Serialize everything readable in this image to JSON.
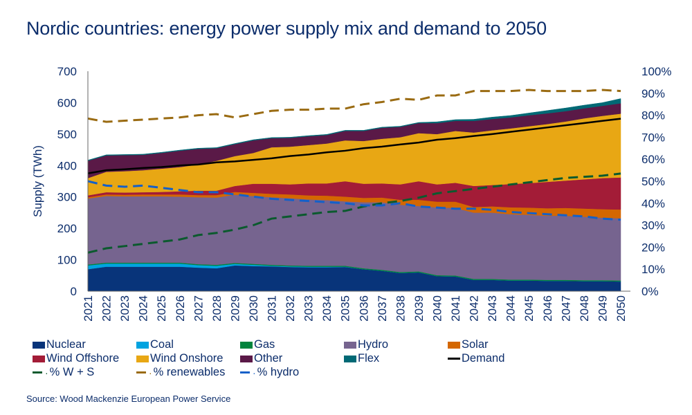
{
  "title": "Nordic countries: energy power supply mix and demand to 2050",
  "source": "Source: Wood Mackenzie European Power Service",
  "chart_data": {
    "type": "area",
    "stacked": true,
    "title": "Nordic countries: energy power supply mix and demand to 2050",
    "ylabel": "Supply (TWh)",
    "ylim": [
      0,
      700
    ],
    "yticks": [
      "0",
      "100",
      "200",
      "300",
      "400",
      "500",
      "600",
      "700"
    ],
    "y2lim": [
      0,
      100
    ],
    "y2ticks": [
      "0%",
      "10%",
      "20%",
      "30%",
      "40%",
      "50%",
      "60%",
      "70%",
      "80%",
      "90%",
      "100%"
    ],
    "grid": false,
    "legend_position": "bottom",
    "categories": [
      "2021",
      "2022",
      "2023",
      "2024",
      "2025",
      "2026",
      "2027",
      "2028",
      "2029",
      "2030",
      "2031",
      "2032",
      "2033",
      "2034",
      "2035",
      "2036",
      "2037",
      "2038",
      "2039",
      "2040",
      "2041",
      "2042",
      "2043",
      "2044",
      "2045",
      "2046",
      "2047",
      "2048",
      "2049",
      "2050"
    ],
    "series": [
      {
        "name": "Nuclear",
        "color": "#08347a",
        "values": [
          70,
          78,
          78,
          78,
          78,
          78,
          75,
          73,
          82,
          80,
          79,
          77,
          76,
          76,
          77,
          70,
          65,
          58,
          60,
          48,
          47,
          36,
          36,
          34,
          34,
          33,
          33,
          32,
          32,
          31
        ]
      },
      {
        "name": "Coal",
        "color": "#00a3e0",
        "values": [
          12,
          10,
          10,
          10,
          10,
          10,
          8,
          8,
          5,
          4,
          2,
          2,
          2,
          2,
          1,
          0,
          0,
          0,
          0,
          0,
          0,
          0,
          0,
          0,
          0,
          0,
          0,
          0,
          0,
          0
        ]
      },
      {
        "name": "Gas",
        "color": "#00843d",
        "values": [
          3,
          3,
          3,
          3,
          3,
          3,
          3,
          3,
          3,
          3,
          3,
          3,
          3,
          3,
          3,
          3,
          3,
          3,
          3,
          3,
          3,
          3,
          3,
          3,
          3,
          3,
          3,
          3,
          3,
          3
        ]
      },
      {
        "name": "Hydro",
        "color": "#76648f",
        "values": [
          210,
          212,
          211,
          211,
          211,
          210,
          213,
          214,
          217,
          216,
          215,
          214,
          211,
          209,
          205,
          210,
          215,
          214,
          208,
          216,
          215,
          211,
          211,
          208,
          206,
          204,
          204,
          202,
          199,
          198
        ]
      },
      {
        "name": "Solar",
        "color": "#d46700",
        "values": [
          4,
          5,
          5,
          6,
          6,
          7,
          7,
          8,
          9,
          10,
          11,
          12,
          13,
          14,
          15,
          14,
          15,
          16,
          20,
          18,
          20,
          18,
          20,
          22,
          23,
          24,
          25,
          26,
          27,
          28
        ]
      },
      {
        "name": "Wind Offshore",
        "color": "#a31c37",
        "values": [
          6,
          7,
          7,
          7,
          8,
          10,
          14,
          14,
          19,
          29,
          32,
          32,
          38,
          39,
          49,
          45,
          45,
          49,
          59,
          55,
          60,
          67,
          68,
          74,
          78,
          84,
          87,
          93,
          99,
          102
        ]
      },
      {
        "name": "Wind Onshore",
        "color": "#e8a714",
        "values": [
          55,
          65,
          68,
          70,
          74,
          77,
          83,
          95,
          95,
          98,
          116,
          120,
          122,
          127,
          130,
          136,
          142,
          150,
          153,
          160,
          165,
          170,
          174,
          177,
          181,
          184,
          188,
          194,
          198,
          203
        ]
      },
      {
        "name": "Other",
        "color": "#5a1947",
        "values": [
          55,
          52,
          51,
          49,
          50,
          52,
          50,
          40,
          38,
          40,
          29,
          28,
          28,
          27,
          30,
          32,
          35,
          33,
          32,
          35,
          32,
          37,
          36,
          35,
          35,
          34,
          33,
          32,
          32,
          33
        ]
      },
      {
        "name": "Flex",
        "color": "#006975",
        "values": [
          2,
          2,
          2,
          2,
          2,
          2,
          2,
          2,
          2,
          2,
          2,
          2,
          2,
          2,
          2,
          2,
          2,
          2,
          2,
          4,
          4,
          5,
          6,
          6,
          7,
          9,
          10,
          10,
          10,
          15
        ]
      }
    ],
    "lines": [
      {
        "name": "Demand",
        "axis": "left",
        "color": "#000000",
        "style": "solid",
        "values": [
          375,
          385,
          388,
          392,
          395,
          400,
          403,
          410,
          413,
          418,
          423,
          430,
          435,
          442,
          447,
          455,
          460,
          467,
          473,
          482,
          487,
          494,
          500,
          507,
          514,
          521,
          528,
          535,
          542,
          549
        ]
      },
      {
        "name": "% W + S",
        "axis": "right",
        "color": "#0b5a2e",
        "style": "dashed",
        "values": [
          17.5,
          19.5,
          20.5,
          21.5,
          22.5,
          23.5,
          25.5,
          26.5,
          28,
          30,
          33,
          34,
          35,
          36,
          36.5,
          38.5,
          40,
          41,
          42.5,
          44.5,
          45.5,
          46.5,
          47.5,
          48.5,
          49.5,
          50.5,
          51.5,
          52,
          52.5,
          53.5
        ]
      },
      {
        "name": "% renewables",
        "axis": "right",
        "color": "#9a6b12",
        "style": "dashed",
        "values": [
          78.5,
          77,
          77.5,
          78,
          78.5,
          79,
          80,
          80.5,
          79,
          80.5,
          82,
          82.5,
          82.5,
          83,
          83,
          85,
          86,
          87.5,
          87,
          89,
          89,
          91,
          91,
          91,
          91.5,
          91,
          91,
          91,
          91.5,
          91
        ]
      },
      {
        "name": "% hydro",
        "axis": "right",
        "color": "#1560c8",
        "style": "dashed",
        "values": [
          50,
          48,
          47.5,
          48,
          47,
          46,
          45,
          45,
          44,
          43,
          42,
          41.5,
          41,
          40.5,
          40,
          39,
          39,
          40,
          38.5,
          38,
          37.5,
          37.5,
          37,
          36,
          35.5,
          35,
          34.5,
          34,
          33,
          32.5
        ]
      }
    ]
  }
}
